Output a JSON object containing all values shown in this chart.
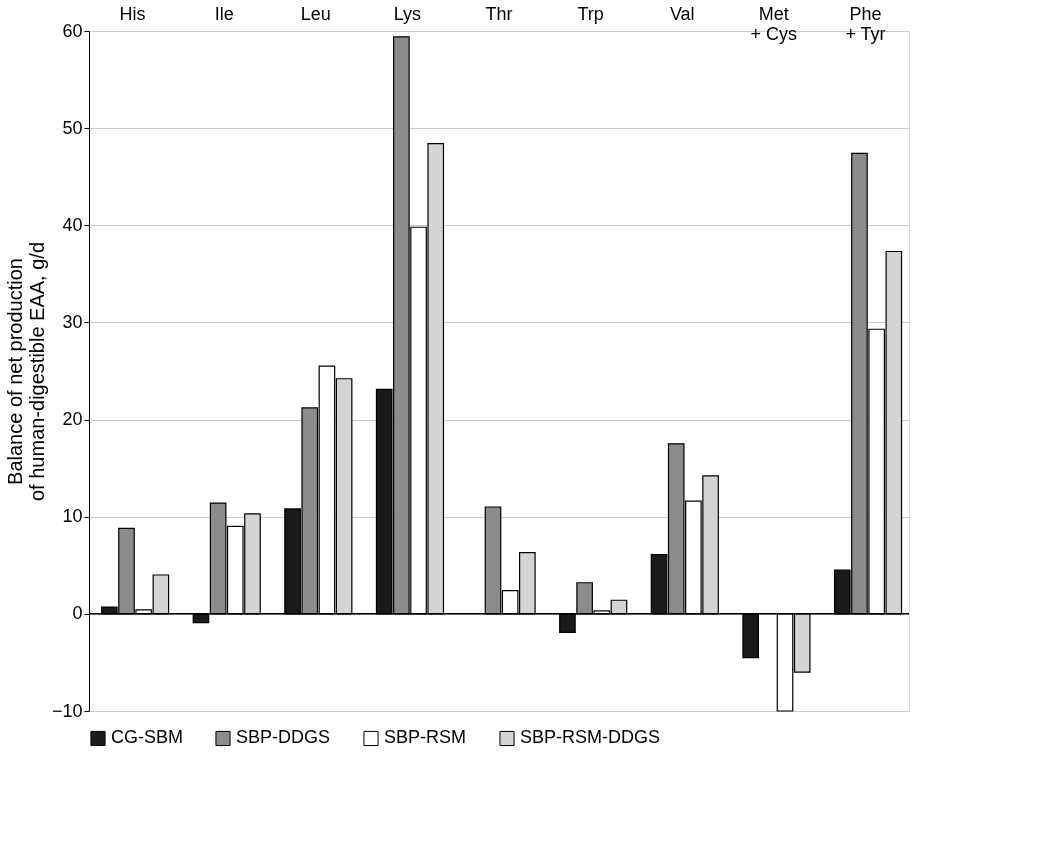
{
  "chart_data": {
    "type": "bar",
    "ylabel": "Balance of net production\nof human-digestible EAA, g/d",
    "categories": [
      "His",
      "Ile",
      "Leu",
      "Lys",
      "Thr",
      "Trp",
      "Val",
      "Met\n+ Cys",
      "Phe\n+ Tyr"
    ],
    "series": [
      {
        "name": "CG-SBM",
        "color": "#1a1a1a",
        "values": [
          0.7,
          -0.9,
          10.8,
          23.1,
          null,
          -1.9,
          6.1,
          -4.5,
          4.5
        ]
      },
      {
        "name": "SBP-DDGS",
        "color": "#8c8c8c",
        "values": [
          8.8,
          11.4,
          21.2,
          59.4,
          11.0,
          3.2,
          17.5,
          null,
          47.4
        ]
      },
      {
        "name": "SBP-RSM",
        "color": "#ffffff",
        "values": [
          0.4,
          9.0,
          25.5,
          39.8,
          2.4,
          0.3,
          11.6,
          -10,
          29.3
        ]
      },
      {
        "name": "SBP-RSM-DDGS",
        "color": "#d4d4d4",
        "values": [
          4.0,
          10.3,
          24.2,
          48.4,
          6.3,
          1.4,
          14.2,
          -6.0,
          37.3
        ]
      }
    ],
    "ylim": [
      -10,
      60
    ],
    "yticks": [
      -10,
      0,
      10,
      20,
      30,
      40,
      50,
      60
    ],
    "grid": "y",
    "legend": "bottom"
  }
}
